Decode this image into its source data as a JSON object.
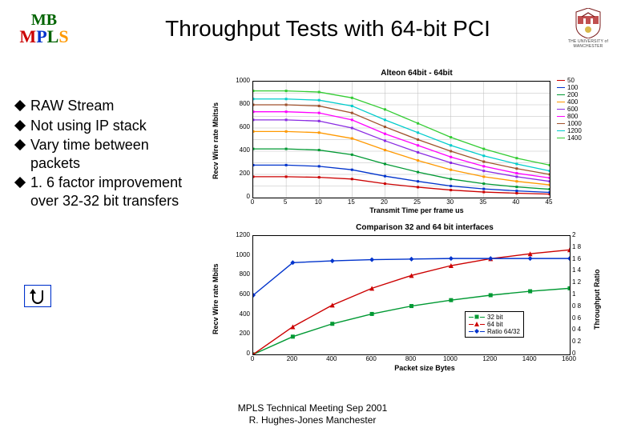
{
  "header": {
    "logo_line1": "MB",
    "logo_line2": "MPLS",
    "title": "Throughput Tests with 64-bit PCI",
    "crest_caption": "THE UNIVERSITY of MANCHESTER"
  },
  "bullets": [
    "RAW Stream",
    "Not using IP stack",
    "Vary time between packets",
    "1. 6 factor improvement over 32-32 bit transfers"
  ],
  "chart1": {
    "title": "Alteon 64bit - 64bit",
    "ylabel": "Recv Wire rate Mbits/s",
    "xlabel": "Transmit Time per frame us",
    "ylim": [
      0,
      1000
    ],
    "ytick_step": 200,
    "ytick_minor": 100,
    "xlim": [
      0,
      45
    ],
    "xtick_step": 5,
    "grid_color": "#bbbbbb",
    "background": "#ffffff",
    "series": [
      {
        "label": "50",
        "color": "#cc0000",
        "y": [
          180,
          180,
          175,
          160,
          120,
          90,
          65,
          48,
          38,
          30
        ]
      },
      {
        "label": "100",
        "color": "#0033cc",
        "y": [
          280,
          280,
          270,
          240,
          185,
          140,
          100,
          75,
          58,
          45
        ]
      },
      {
        "label": "200",
        "color": "#009933",
        "y": [
          420,
          420,
          410,
          370,
          290,
          220,
          160,
          120,
          92,
          72
        ]
      },
      {
        "label": "400",
        "color": "#ff9900",
        "y": [
          570,
          570,
          560,
          510,
          410,
          320,
          240,
          180,
          140,
          110
        ]
      },
      {
        "label": "600",
        "color": "#8a2be2",
        "y": [
          670,
          670,
          660,
          600,
          490,
          390,
          300,
          230,
          180,
          140
        ]
      },
      {
        "label": "800",
        "color": "#ff00ff",
        "y": [
          740,
          740,
          730,
          670,
          550,
          450,
          350,
          270,
          210,
          170
        ]
      },
      {
        "label": "1000",
        "color": "#a0522d",
        "y": [
          800,
          800,
          790,
          730,
          610,
          500,
          400,
          310,
          250,
          200
        ]
      },
      {
        "label": "1200",
        "color": "#00cccc",
        "y": [
          850,
          850,
          840,
          790,
          670,
          560,
          450,
          360,
          290,
          230
        ]
      },
      {
        "label": "1400",
        "color": "#33cc33",
        "y": [
          920,
          920,
          910,
          860,
          760,
          640,
          520,
          420,
          340,
          280
        ]
      }
    ],
    "x_values": [
      0,
      5,
      10,
      15,
      20,
      25,
      30,
      35,
      40,
      45
    ]
  },
  "chart2": {
    "title": "Comparison 32 and 64 bit interfaces",
    "ylabel": "Recv Wire rate Mbits",
    "ylabel2": "Throughput Ratio",
    "xlabel": "Packet size Bytes",
    "ylim": [
      0,
      1200
    ],
    "ytick_step": 200,
    "xlim": [
      0,
      1600
    ],
    "xtick_step": 200,
    "y2lim": [
      0,
      2.0
    ],
    "y2ticks": [
      0,
      0.2,
      0.4,
      0.6,
      0.8,
      1.0,
      1.2,
      1.4,
      1.6,
      1.8,
      2.0
    ],
    "y2tick_labels": [
      "0",
      "0 2",
      "0 4",
      "0 6",
      "0 8",
      "1",
      "1 2",
      "1 4",
      "1 6",
      "1 8",
      "2"
    ],
    "background": "#ffffff",
    "series": [
      {
        "label": "32 bit",
        "color": "#009933",
        "marker": "square",
        "x": [
          0,
          200,
          400,
          600,
          800,
          1000,
          1200,
          1400,
          1600
        ],
        "y": [
          0,
          180,
          310,
          410,
          490,
          550,
          600,
          640,
          670
        ]
      },
      {
        "label": "64 bit",
        "color": "#cc0000",
        "marker": "triangle",
        "x": [
          0,
          200,
          400,
          600,
          800,
          1000,
          1200,
          1400,
          1600
        ],
        "y": [
          0,
          280,
          500,
          670,
          800,
          900,
          970,
          1020,
          1060
        ]
      },
      {
        "label": "Ratio 64/32",
        "color": "#0033cc",
        "marker": "diamond",
        "x": [
          0,
          200,
          400,
          600,
          800,
          1000,
          1200,
          1400,
          1600
        ],
        "y2": [
          1.0,
          1.55,
          1.58,
          1.6,
          1.61,
          1.62,
          1.62,
          1.62,
          1.62
        ]
      }
    ]
  },
  "footer": {
    "line1": "MPLS Technical Meeting Sep 2001",
    "line2": "R. Hughes-Jones  Manchester"
  }
}
